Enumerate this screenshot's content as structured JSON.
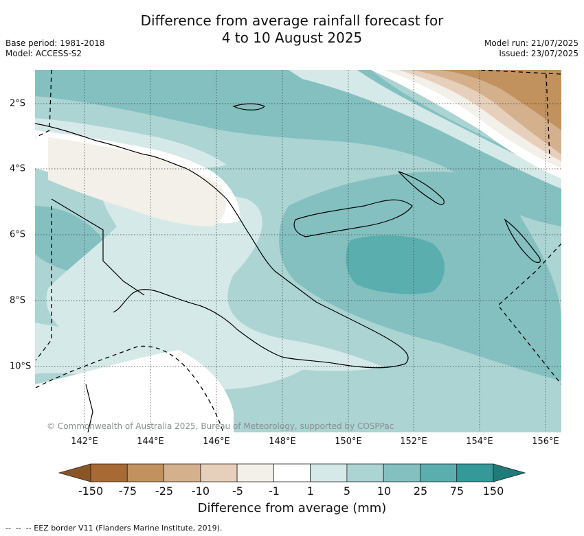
{
  "header": {
    "title_line1": "Difference from average rainfall forecast for",
    "title_line2": "4 to 10 August 2025",
    "base_period": "Base period: 1981-2018",
    "model": "Model: ACCESS-S2",
    "model_run": "Model run: 21/07/2025",
    "issued": "Issued: 23/07/2025"
  },
  "map": {
    "x_ticks": [
      "142°E",
      "144°E",
      "146°E",
      "148°E",
      "150°E",
      "152°E",
      "154°E",
      "156°E"
    ],
    "y_ticks": [
      "2°S",
      "4°S",
      "6°S",
      "8°S",
      "10°S"
    ],
    "copyright": "© Commonwealth of Australia 2025, Bureau of Meteorology, supported by COSPPac",
    "region": "Papua New Guinea"
  },
  "colorbar": {
    "labels": [
      "-150",
      "-75",
      "-25",
      "-10",
      "-5",
      "-1",
      "1",
      "5",
      "10",
      "25",
      "75",
      "150"
    ],
    "colors": [
      "#a86a34",
      "#c1915e",
      "#d4b08c",
      "#e6cfbb",
      "#f3efe9",
      "#ffffff",
      "#d5e9e8",
      "#abd4d3",
      "#84c0c0",
      "#5aaeae",
      "#339a99",
      "#1f7a7a"
    ],
    "title": "Difference from average (mm)"
  },
  "footer": {
    "eez_legend": "-- EEZ border V11 (Flanders Marine Institute, 2019)."
  }
}
